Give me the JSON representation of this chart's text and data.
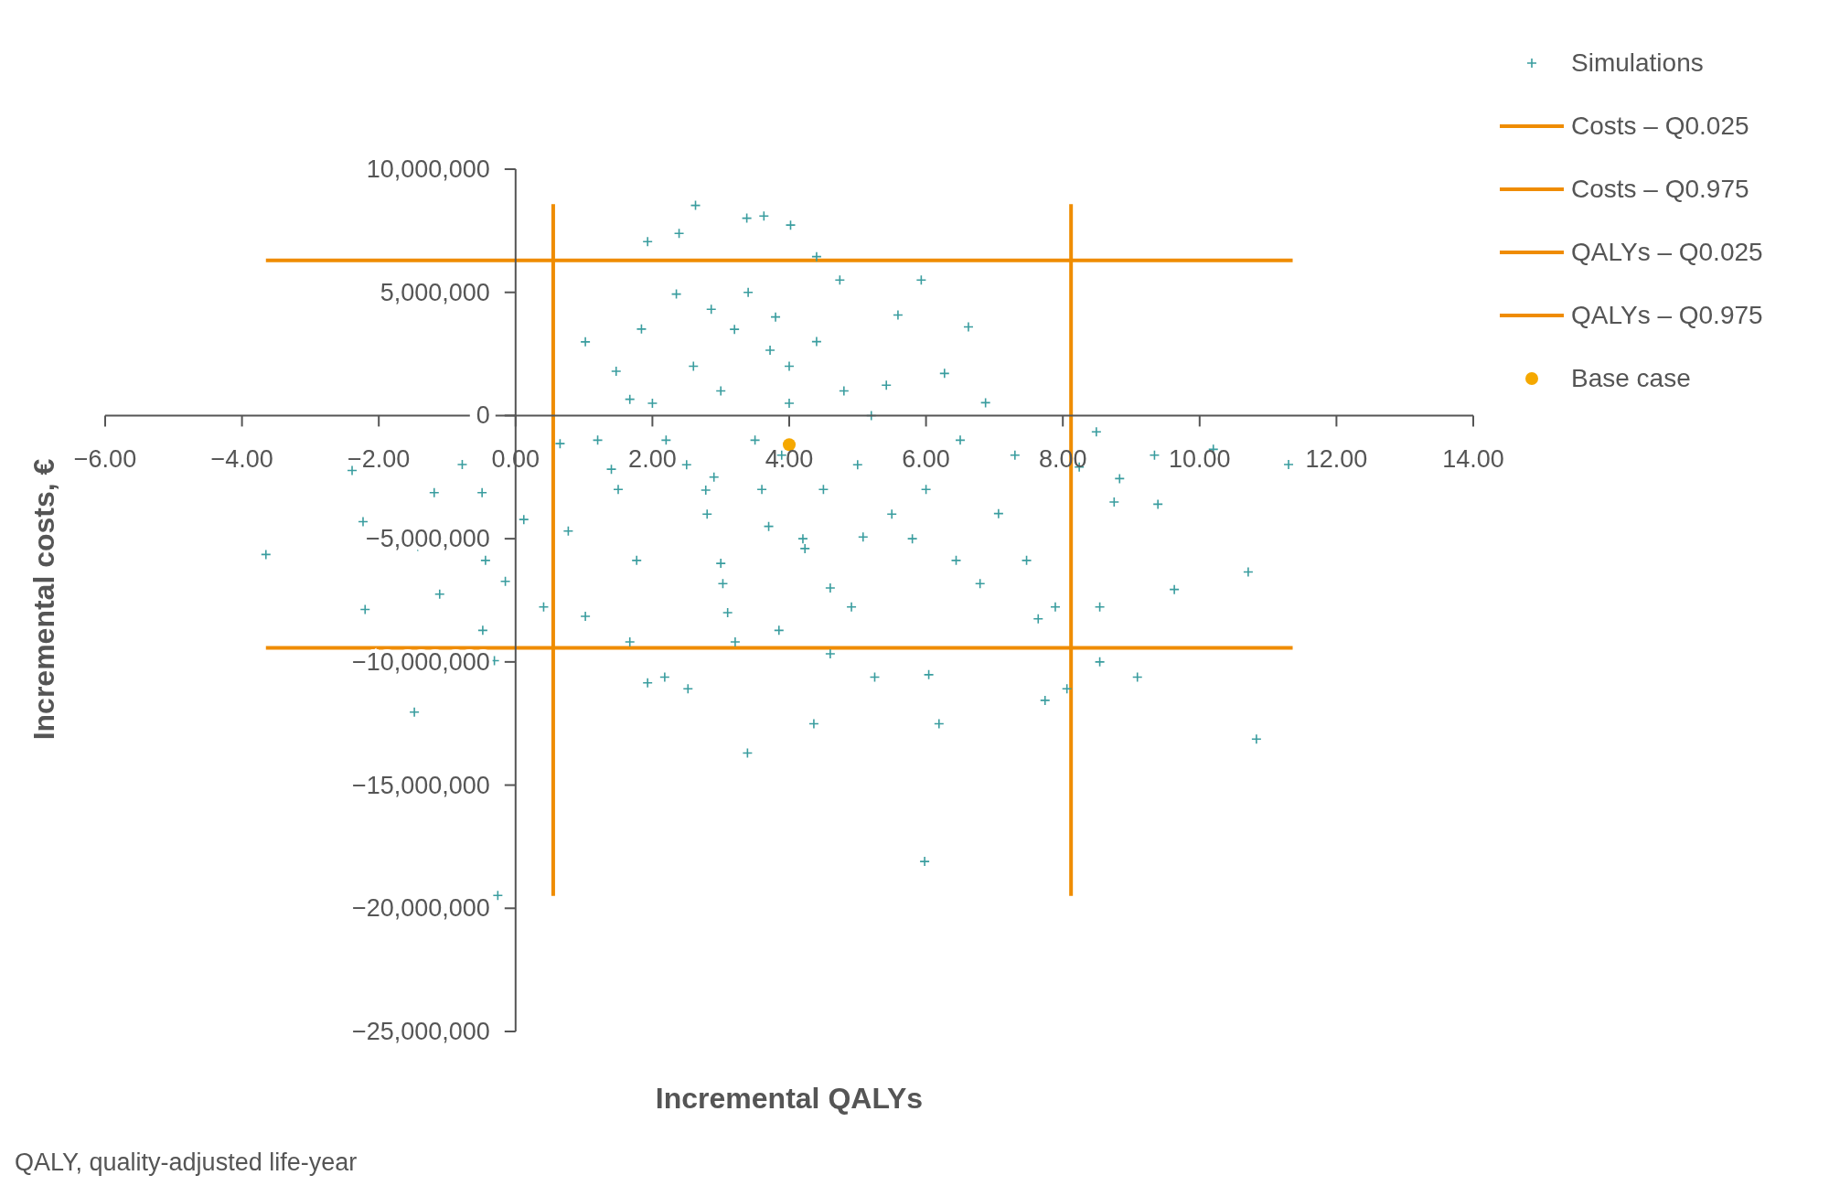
{
  "chart_data": {
    "type": "scatter",
    "xlabel": "Incremental QALYs",
    "ylabel": "Incremental costs, €",
    "legend": "top right",
    "grid": false,
    "annotations": [
      "QALY, quality-adjusted life-year"
    ],
    "xlim": [
      -6,
      14
    ],
    "ylim": [
      -25000000,
      10000000
    ],
    "xticks": [
      {
        "value": -6,
        "label": "−6.00"
      },
      {
        "value": -4,
        "label": "−4.00"
      },
      {
        "value": -2,
        "label": "−2.00"
      },
      {
        "value": 0,
        "label": "0.00"
      },
      {
        "value": 2,
        "label": "2.00"
      },
      {
        "value": 4,
        "label": "4.00"
      },
      {
        "value": 6,
        "label": "6.00"
      },
      {
        "value": 8,
        "label": "8.00"
      },
      {
        "value": 10,
        "label": "10.00"
      },
      {
        "value": 12,
        "label": "12.00"
      },
      {
        "value": 14,
        "label": "14.00"
      }
    ],
    "yticks": [
      {
        "value": 10000000,
        "label": "10,000,000"
      },
      {
        "value": 5000000,
        "label": "5,000,000"
      },
      0,
      {
        "value": -5000000,
        "label": "−5,000,000"
      },
      {
        "value": -10000000,
        "label": "−10,000,000"
      },
      {
        "value": -15000000,
        "label": "−15,000,000"
      },
      {
        "value": -20000000,
        "label": "−20,000,000"
      },
      {
        "value": -25000000,
        "label": "−25,000,000"
      }
    ],
    "series": [
      {
        "name": "Simulations",
        "marker": "cross",
        "color": "#3a9d9f",
        "x": [
          -3.65,
          -2.2,
          -2.39,
          -2.23,
          -1.48,
          -1.43,
          -1.11,
          -1.19,
          -0.78,
          -0.49,
          -0.44,
          -0.48,
          -0.31,
          -0.26,
          -0.15,
          0.12,
          0.41,
          0.65,
          0.77,
          1.02,
          1.02,
          1.4,
          1.47,
          1.67,
          1.84,
          1.93,
          1.77,
          1.67,
          1.93,
          2.18,
          2.35,
          2.39,
          2.52,
          2.63,
          2.78,
          2.86,
          3.03,
          3.21,
          3.38,
          3.39,
          3.63,
          3.72,
          3.89,
          4.02,
          3.85,
          4.23,
          4.4,
          4.36,
          4.6,
          4.74,
          4.91,
          5.08,
          5.25,
          5.42,
          5.59,
          5.93,
          5.98,
          6.04,
          6.19,
          6.27,
          6.44,
          6.62,
          6.79,
          6.87,
          7.06,
          7.3,
          7.47,
          7.64,
          7.74,
          7.89,
          8.06,
          8.24,
          8.49,
          8.54,
          8.54,
          8.75,
          8.83,
          9.09,
          9.34,
          9.39,
          9.63,
          10.2,
          10.71,
          10.83,
          11.3,
          2.5,
          3,
          3.5,
          4,
          4.5,
          3.2,
          2.8,
          4.2,
          5,
          5.5,
          3.8,
          2.2,
          3,
          4.8,
          1.5,
          2,
          3.6,
          4.4,
          5.2,
          6,
          2.6,
          3.4,
          4.6,
          1.2,
          6.5,
          3.1,
          4,
          2.9,
          5.8,
          3.7
        ],
        "values": [
          -5640000,
          -7870000,
          -2230000,
          -4310000,
          -12040000,
          -5310000,
          -7250000,
          -3130000,
          -1990000,
          -3130000,
          -5880000,
          -8720000,
          -9950000,
          -19480000,
          -6730000,
          -4220000,
          -7770000,
          -1140000,
          -4690000,
          2990000,
          -8150000,
          -2180000,
          1800000,
          660000,
          3510000,
          7060000,
          -5880000,
          -9190000,
          -10850000,
          -10620000,
          4930000,
          7390000,
          -11090000,
          8530000,
          -3030000,
          4310000,
          -6820000,
          -9190000,
          8010000,
          -13700000,
          8100000,
          2650000,
          -1610000,
          7730000,
          -8720000,
          -5400000,
          6450000,
          -12510000,
          -9670000,
          5500000,
          -7770000,
          -4930000,
          -10620000,
          1230000,
          4080000,
          5500000,
          -18100000,
          -10520000,
          -12510000,
          1710000,
          -5880000,
          3600000,
          -6820000,
          520000,
          -3980000,
          -1610000,
          -5880000,
          -8250000,
          -11560000,
          -7770000,
          -11090000,
          -2090000,
          -660000,
          -7770000,
          -10000000,
          -3510000,
          -2560000,
          -10620000,
          -1610000,
          -3600000,
          -7060000,
          -1370000,
          -6350000,
          -13130000,
          -1990000,
          -2000000,
          1000000,
          -1000000,
          2000000,
          -3000000,
          3500000,
          -4000000,
          -5000000,
          -2000000,
          -4000000,
          4000000,
          -1000000,
          -6000000,
          1000000,
          -3000000,
          500000,
          -3000000,
          3000000,
          0,
          -3000000,
          2000000,
          5000000,
          -7000000,
          -1000000,
          -1000000,
          -8000000,
          500000,
          -2500000,
          -5000000,
          -4500000
        ]
      },
      {
        "name": "Costs – Q0.025",
        "type": "line",
        "color": "#ef8c00",
        "x": [
          -3.65,
          11.36
        ],
        "values": [
          -9430000,
          -9430000
        ]
      },
      {
        "name": "Costs – Q0.975",
        "type": "line",
        "color": "#ef8c00",
        "x": [
          -3.65,
          11.36
        ],
        "values": [
          6300000,
          6300000
        ]
      },
      {
        "name": "QALYs – Q0.025",
        "type": "line",
        "color": "#ef8c00",
        "x": [
          0.55,
          0.55
        ],
        "values": [
          8580000,
          -19500000
        ]
      },
      {
        "name": "QALYs – Q0.975",
        "type": "line",
        "color": "#ef8c00",
        "x": [
          8.12,
          8.12
        ],
        "values": [
          8580000,
          -19500000
        ]
      },
      {
        "name": "Base case",
        "marker": "circle",
        "color": "#f5a800",
        "x": [
          4.0
        ],
        "values": [
          -1180000
        ]
      }
    ]
  }
}
